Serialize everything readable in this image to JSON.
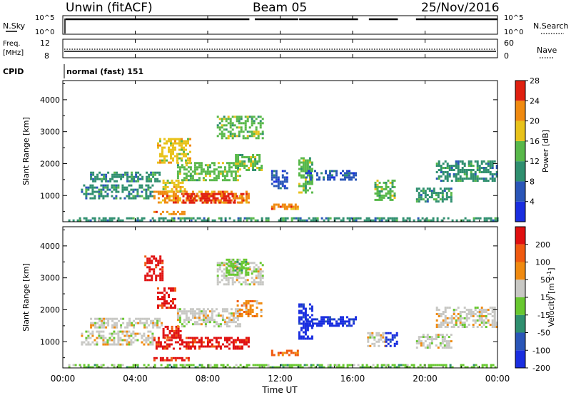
{
  "header": {
    "radar": "Unwin (fitACF)",
    "beam": "Beam 05",
    "date": "25/Nov/2016"
  },
  "top_panels": {
    "nsky_label": "N.Sky",
    "nsky_ticks": [
      "10^5",
      "10^0"
    ],
    "nsearch_label": "N.Search",
    "nsearch_ticks": [
      "10^5",
      "10^0"
    ],
    "freq_label": "Freq.",
    "freq_unit": "[MHz]",
    "freq_ticks": [
      "12",
      "8"
    ],
    "nave_label": "Nave",
    "nave_ticks": [
      "60",
      "0"
    ],
    "cpid_label": "CPID",
    "cpid_value": "normal (fast) 151"
  },
  "chart_data": [
    {
      "type": "heatmap",
      "name": "power",
      "ylabel": "Slant Range [km]",
      "y_ticks": [
        "1000",
        "2000",
        "3000",
        "4000"
      ],
      "ylim": [
        180,
        4600
      ],
      "xlim_hours": [
        0,
        24
      ],
      "colorbar": {
        "label": "Power [dB]",
        "ticks": [
          "4",
          "8",
          "12",
          "16",
          "20",
          "24",
          "28"
        ],
        "colors": [
          "#1a2ee0",
          "#2a56b8",
          "#2f8f6f",
          "#58b84a",
          "#e8c21a",
          "#f08a10",
          "#e02010"
        ]
      },
      "regions": [
        {
          "t0": 0.3,
          "t1": 24,
          "r0": 200,
          "r1": 320,
          "level": 2
        },
        {
          "t0": 1.0,
          "t1": 5.0,
          "r0": 900,
          "r1": 1350,
          "level": 2
        },
        {
          "t0": 1.5,
          "t1": 5.5,
          "r0": 1450,
          "r1": 1750,
          "level": 2
        },
        {
          "t0": 5.0,
          "t1": 7.0,
          "r0": 420,
          "r1": 520,
          "level": 5
        },
        {
          "t0": 5.0,
          "t1": 10.3,
          "r0": 750,
          "r1": 1150,
          "level": 5
        },
        {
          "t0": 6.6,
          "t1": 10.0,
          "r0": 780,
          "r1": 1080,
          "level": 6
        },
        {
          "t0": 5.5,
          "t1": 6.8,
          "r0": 1150,
          "r1": 1500,
          "level": 4
        },
        {
          "t0": 6.3,
          "t1": 9.8,
          "r0": 1450,
          "r1": 2050,
          "level": 3
        },
        {
          "t0": 5.2,
          "t1": 7.0,
          "r0": 2050,
          "r1": 2800,
          "level": 4
        },
        {
          "t0": 9.5,
          "t1": 11.0,
          "r0": 1800,
          "r1": 2300,
          "level": 3
        },
        {
          "t0": 8.5,
          "t1": 11.0,
          "r0": 2800,
          "r1": 3500,
          "level": 3
        },
        {
          "t0": 11.5,
          "t1": 13.0,
          "r0": 550,
          "r1": 750,
          "level": 5
        },
        {
          "t0": 13.0,
          "t1": 13.8,
          "r0": 1100,
          "r1": 2200,
          "level": 3
        },
        {
          "t0": 13.4,
          "t1": 16.2,
          "r0": 1500,
          "r1": 1800,
          "level": 1
        },
        {
          "t0": 11.5,
          "t1": 12.4,
          "r0": 1200,
          "r1": 1800,
          "level": 1
        },
        {
          "t0": 17.2,
          "t1": 18.3,
          "r0": 850,
          "r1": 1500,
          "level": 3
        },
        {
          "t0": 19.5,
          "t1": 21.5,
          "r0": 800,
          "r1": 1250,
          "level": 2
        },
        {
          "t0": 20.6,
          "t1": 24.0,
          "r0": 1450,
          "r1": 2100,
          "level": 2
        }
      ]
    },
    {
      "type": "heatmap",
      "name": "velocity",
      "ylabel": "Slant Range [km]",
      "y_ticks": [
        "1000",
        "2000",
        "3000",
        "4000"
      ],
      "ylim": [
        180,
        4600
      ],
      "xlim_hours": [
        0,
        24
      ],
      "x_ticks": [
        "00:00",
        "04:00",
        "08:00",
        "12:00",
        "16:00",
        "20:00",
        "00:00"
      ],
      "xlabel": "Time UT",
      "colorbar": {
        "label": "Velocity [m s",
        "label_sup": "-1",
        "label_end": "]",
        "ticks": [
          "200",
          "100",
          "50",
          "15",
          "-15",
          "-50",
          "-100",
          "-200"
        ],
        "colors": [
          "#1a2ee0",
          "#2a56b8",
          "#2f8f6f",
          "#68c830",
          "#c8c8c4",
          "#f08a10",
          "#f05a10",
          "#e01010"
        ]
      },
      "regions": [
        {
          "t0": 0.3,
          "t1": 24,
          "r0": 200,
          "r1": 300,
          "level": 3
        },
        {
          "t0": 1.0,
          "t1": 5.0,
          "r0": 900,
          "r1": 1350,
          "level": 4
        },
        {
          "t0": 1.5,
          "t1": 5.5,
          "r0": 1450,
          "r1": 1750,
          "level": 4
        },
        {
          "t0": 5.0,
          "t1": 7.0,
          "r0": 420,
          "r1": 520,
          "level": 7
        },
        {
          "t0": 5.0,
          "t1": 10.3,
          "r0": 750,
          "r1": 1150,
          "level": 7
        },
        {
          "t0": 5.5,
          "t1": 6.5,
          "r0": 1150,
          "r1": 1500,
          "level": 7
        },
        {
          "t0": 6.3,
          "t1": 9.8,
          "r0": 1450,
          "r1": 2050,
          "level": 4
        },
        {
          "t0": 5.2,
          "t1": 6.2,
          "r0": 2050,
          "r1": 2700,
          "level": 7
        },
        {
          "t0": 9.6,
          "t1": 11.0,
          "r0": 1800,
          "r1": 2300,
          "level": 5
        },
        {
          "t0": 8.5,
          "t1": 11.0,
          "r0": 2800,
          "r1": 3500,
          "level": 4
        },
        {
          "t0": 11.5,
          "t1": 13.0,
          "r0": 550,
          "r1": 750,
          "level": 6
        },
        {
          "t0": 13.0,
          "t1": 13.8,
          "r0": 1100,
          "r1": 2200,
          "level": 0
        },
        {
          "t0": 13.4,
          "t1": 16.2,
          "r0": 1500,
          "r1": 1800,
          "level": 0
        },
        {
          "t0": 16.8,
          "t1": 17.8,
          "r0": 850,
          "r1": 1300,
          "level": 4
        },
        {
          "t0": 17.8,
          "t1": 18.4,
          "r0": 850,
          "r1": 1300,
          "level": 0
        },
        {
          "t0": 19.5,
          "t1": 21.5,
          "r0": 800,
          "r1": 1250,
          "level": 4
        },
        {
          "t0": 20.6,
          "t1": 24.0,
          "r0": 1450,
          "r1": 2100,
          "level": 4
        },
        {
          "t0": 4.5,
          "t1": 5.5,
          "r0": 2900,
          "r1": 3700,
          "level": 7
        },
        {
          "t0": 9.0,
          "t1": 10.2,
          "r0": 3100,
          "r1": 3600,
          "level": 3
        }
      ]
    }
  ]
}
